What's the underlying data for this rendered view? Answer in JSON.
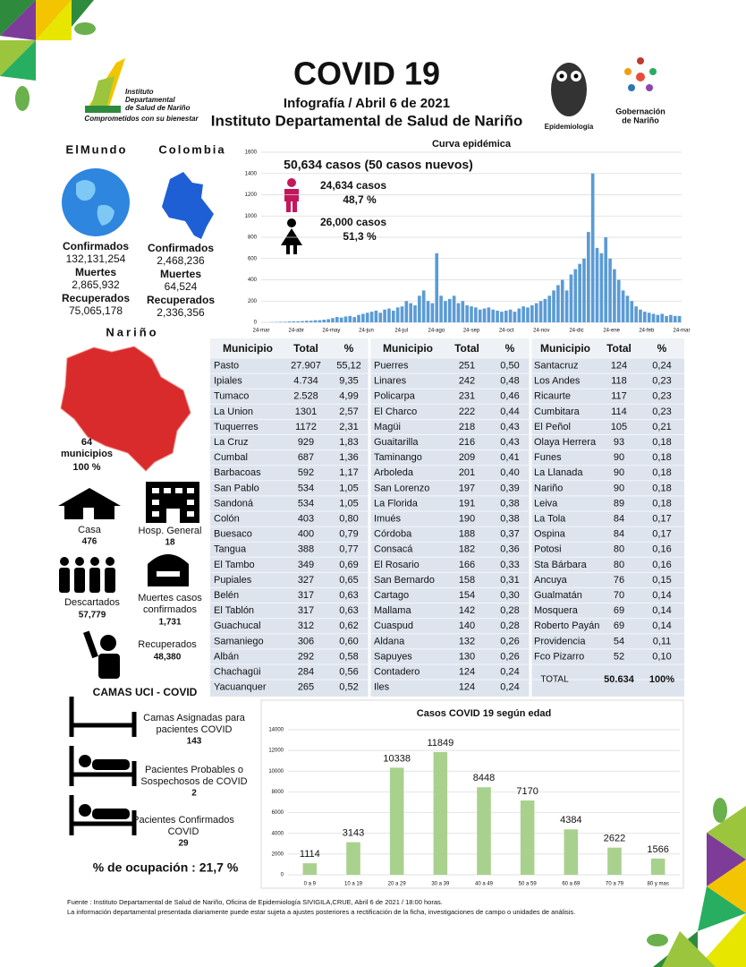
{
  "header": {
    "title": "COVID 19",
    "subtitle": "Infografía / Abril 6 de 2021",
    "organization": "Instituto Departamental de Salud de Nariño",
    "logo_left": [
      "Instituto",
      "Departamental",
      "de Salud de Nariño"
    ],
    "logo_slogan": "Comprometidos con su bienestar",
    "logo_epi": "Epidemiología",
    "logo_right": [
      "Gobernación",
      "de Nariño"
    ]
  },
  "world": {
    "heading": "ElMundo",
    "stats": [
      {
        "label": "Confirmados",
        "value": "132,131,254"
      },
      {
        "label": "Muertes",
        "value": "2,865,932"
      },
      {
        "label": "Recuperados",
        "value": "75,065,178"
      }
    ]
  },
  "colombia": {
    "heading": "Colombia",
    "stats": [
      {
        "label": "Confirmados",
        "value": "2,468,236"
      },
      {
        "label": "Muertes",
        "value": "64,524"
      },
      {
        "label": "Recuperados",
        "value": "2,336,356"
      }
    ]
  },
  "chart_data": [
    {
      "type": "bar",
      "title": "Curva epidémica",
      "summary": "50,634  casos (50 casos nuevos)",
      "annotations": [
        {
          "cases": "24,634  casos",
          "percent": "48,7 %"
        },
        {
          "cases": "26,000  casos",
          "percent": "51,3 %"
        }
      ],
      "x_labels": [
        "24-mar",
        "24-abr",
        "24-may",
        "24-jun",
        "24-jul",
        "24-ago",
        "24-sep",
        "24-oct",
        "24-nov",
        "24-dic",
        "24-ene",
        "24-feb",
        "24-mar"
      ],
      "values": [
        0,
        0,
        2,
        3,
        5,
        5,
        8,
        10,
        10,
        12,
        15,
        15,
        20,
        20,
        25,
        30,
        40,
        50,
        45,
        55,
        60,
        50,
        70,
        80,
        90,
        100,
        110,
        90,
        120,
        130,
        110,
        140,
        150,
        200,
        180,
        160,
        250,
        300,
        200,
        180,
        650,
        250,
        200,
        220,
        250,
        180,
        200,
        160,
        150,
        140,
        120,
        130,
        140,
        120,
        110,
        100,
        110,
        120,
        100,
        130,
        150,
        140,
        160,
        180,
        200,
        220,
        250,
        300,
        350,
        400,
        300,
        450,
        500,
        550,
        600,
        850,
        1400,
        700,
        650,
        800,
        600,
        500,
        400,
        300,
        250,
        200,
        150,
        120,
        100,
        90,
        80,
        70,
        80,
        60,
        70,
        60,
        60
      ],
      "color": "#5b9bd5",
      "ylim": [
        0,
        1600
      ],
      "yticks": [
        0,
        200,
        400,
        600,
        800,
        1000,
        1200,
        1400,
        1600
      ],
      "grid": true
    },
    {
      "type": "bar",
      "title": "Casos COVID 19  según edad",
      "categories": [
        "0 a 9",
        "10 a 19",
        "20 a 29",
        "30 a 39",
        "40 a 49",
        "50 a 59",
        "60 a 69",
        "70 a 79",
        "80 y mas"
      ],
      "values": [
        1114,
        3143,
        10338,
        11849,
        8448,
        7170,
        4384,
        2622,
        1566
      ],
      "color": "#a9d18e",
      "ylim": [
        0,
        14000
      ],
      "yticks": [
        0,
        2000,
        4000,
        6000,
        8000,
        10000,
        12000,
        14000
      ],
      "grid": true
    }
  ],
  "narino": {
    "heading": "Nariño",
    "count": "64",
    "count_label": "municipios",
    "percent": "100 %",
    "stats": [
      {
        "label": "Casa",
        "value": "476"
      },
      {
        "label": "Hosp. General",
        "value": "18"
      },
      {
        "label": "Descartados",
        "value": "57,779"
      },
      {
        "label": [
          "Muertes casos",
          "confirmados"
        ],
        "value": "1,731"
      },
      {
        "label": "Recuperados",
        "value": "48,380"
      }
    ]
  },
  "uci": {
    "title": "CAMAS UCI - COVID",
    "items": [
      {
        "label": [
          "Camas Asignadas para",
          "pacientes COVID"
        ],
        "value": "143"
      },
      {
        "label": [
          "Pacientes Probables o",
          "Sospechosos de COVID"
        ],
        "value": "2"
      },
      {
        "label": [
          "Pacientes Confirmados",
          "COVID"
        ],
        "value": "29"
      }
    ],
    "occupancy": "% de ocupación : 21,7 %"
  },
  "table": {
    "header": [
      "Municipio",
      "Total",
      "%",
      "Municipio",
      "Total",
      "%",
      "Municipio",
      "Total",
      "%"
    ],
    "rows": [
      [
        "Pasto",
        "27.907",
        "55,12",
        "Puerres",
        "251",
        "0,50",
        "Santacruz",
        "124",
        "0,24"
      ],
      [
        "Ipiales",
        "4.734",
        "9,35",
        "Linares",
        "242",
        "0,48",
        "Los Andes",
        "118",
        "0,23"
      ],
      [
        "Tumaco",
        "2.528",
        "4,99",
        "Policarpa",
        "231",
        "0,46",
        "Ricaurte",
        "117",
        "0,23"
      ],
      [
        "La Union",
        "1301",
        "2,57",
        "El Charco",
        "222",
        "0,44",
        "Cumbitara",
        "114",
        "0,23"
      ],
      [
        "Tuquerres",
        "1172",
        "2,31",
        "Magüi",
        "218",
        "0,43",
        "El Peñol",
        "105",
        "0,21"
      ],
      [
        "La Cruz",
        "929",
        "1,83",
        "Guaitarilla",
        "216",
        "0,43",
        "Olaya Herrera",
        "93",
        "0,18"
      ],
      [
        "Cumbal",
        "687",
        "1,36",
        "Taminango",
        "209",
        "0,41",
        "Funes",
        "90",
        "0,18"
      ],
      [
        "Barbacoas",
        "592",
        "1,17",
        "Arboleda",
        "201",
        "0,40",
        "La Llanada",
        "90",
        "0,18"
      ],
      [
        "San Pablo",
        "534",
        "1,05",
        "San Lorenzo",
        "197",
        "0,39",
        "Nariño",
        "90",
        "0,18"
      ],
      [
        "Sandoná",
        "534",
        "1,05",
        "La Florida",
        "191",
        "0,38",
        "Leiva",
        "89",
        "0,18"
      ],
      [
        "Colón",
        "403",
        "0,80",
        "Imués",
        "190",
        "0,38",
        "La Tola",
        "84",
        "0,17"
      ],
      [
        "Buesaco",
        "400",
        "0,79",
        "Córdoba",
        "188",
        "0,37",
        "Ospina",
        "84",
        "0,17"
      ],
      [
        "Tangua",
        "388",
        "0,77",
        "Consacá",
        "182",
        "0,36",
        "Potosi",
        "80",
        "0,16"
      ],
      [
        "El Tambo",
        "349",
        "0,69",
        "El Rosario",
        "166",
        "0,33",
        "Sta Bárbara",
        "80",
        "0,16"
      ],
      [
        "Pupiales",
        "327",
        "0,65",
        "San Bernardo",
        "158",
        "0,31",
        "Ancuya",
        "76",
        "0,15"
      ],
      [
        "Belén",
        "317",
        "0,63",
        "Cartago",
        "154",
        "0,30",
        "Gualmatán",
        "70",
        "0,14"
      ],
      [
        "El Tablón",
        "317",
        "0,63",
        "Mallama",
        "142",
        "0,28",
        "Mosquera",
        "69",
        "0,14"
      ],
      [
        "Guachucal",
        "312",
        "0,62",
        "Cuaspud",
        "140",
        "0,28",
        "Roberto Payán",
        "69",
        "0,14"
      ],
      [
        "Samaniego",
        "306",
        "0,60",
        "Aldana",
        "132",
        "0,26",
        "Providencia",
        "54",
        "0,11"
      ],
      [
        "Albán",
        "292",
        "0,58",
        "Sapuyes",
        "130",
        "0,26",
        "Fco Pizarro",
        "52",
        "0,10"
      ],
      [
        "Chachagüi",
        "284",
        "0,56",
        "Contadero",
        "124",
        "0,24"
      ],
      [
        "Yacuanquer",
        "265",
        "0,52",
        "Iles",
        "124",
        "0,24"
      ]
    ],
    "total": [
      "TOTAL",
      "50.634",
      "100%"
    ]
  },
  "footer": [
    "Fuente : Instituto Departamental de Salud de Nariño, Oficina de Epidemiología SIVIGILA,CRUE,  Abril 6 de 2021 / 18:00  horas.",
    "La información departamental presentada diariamente puede estar sujeta a ajustes posteriores a  rectificación de la ficha, investigaciones de campo o unidades de análisis."
  ]
}
